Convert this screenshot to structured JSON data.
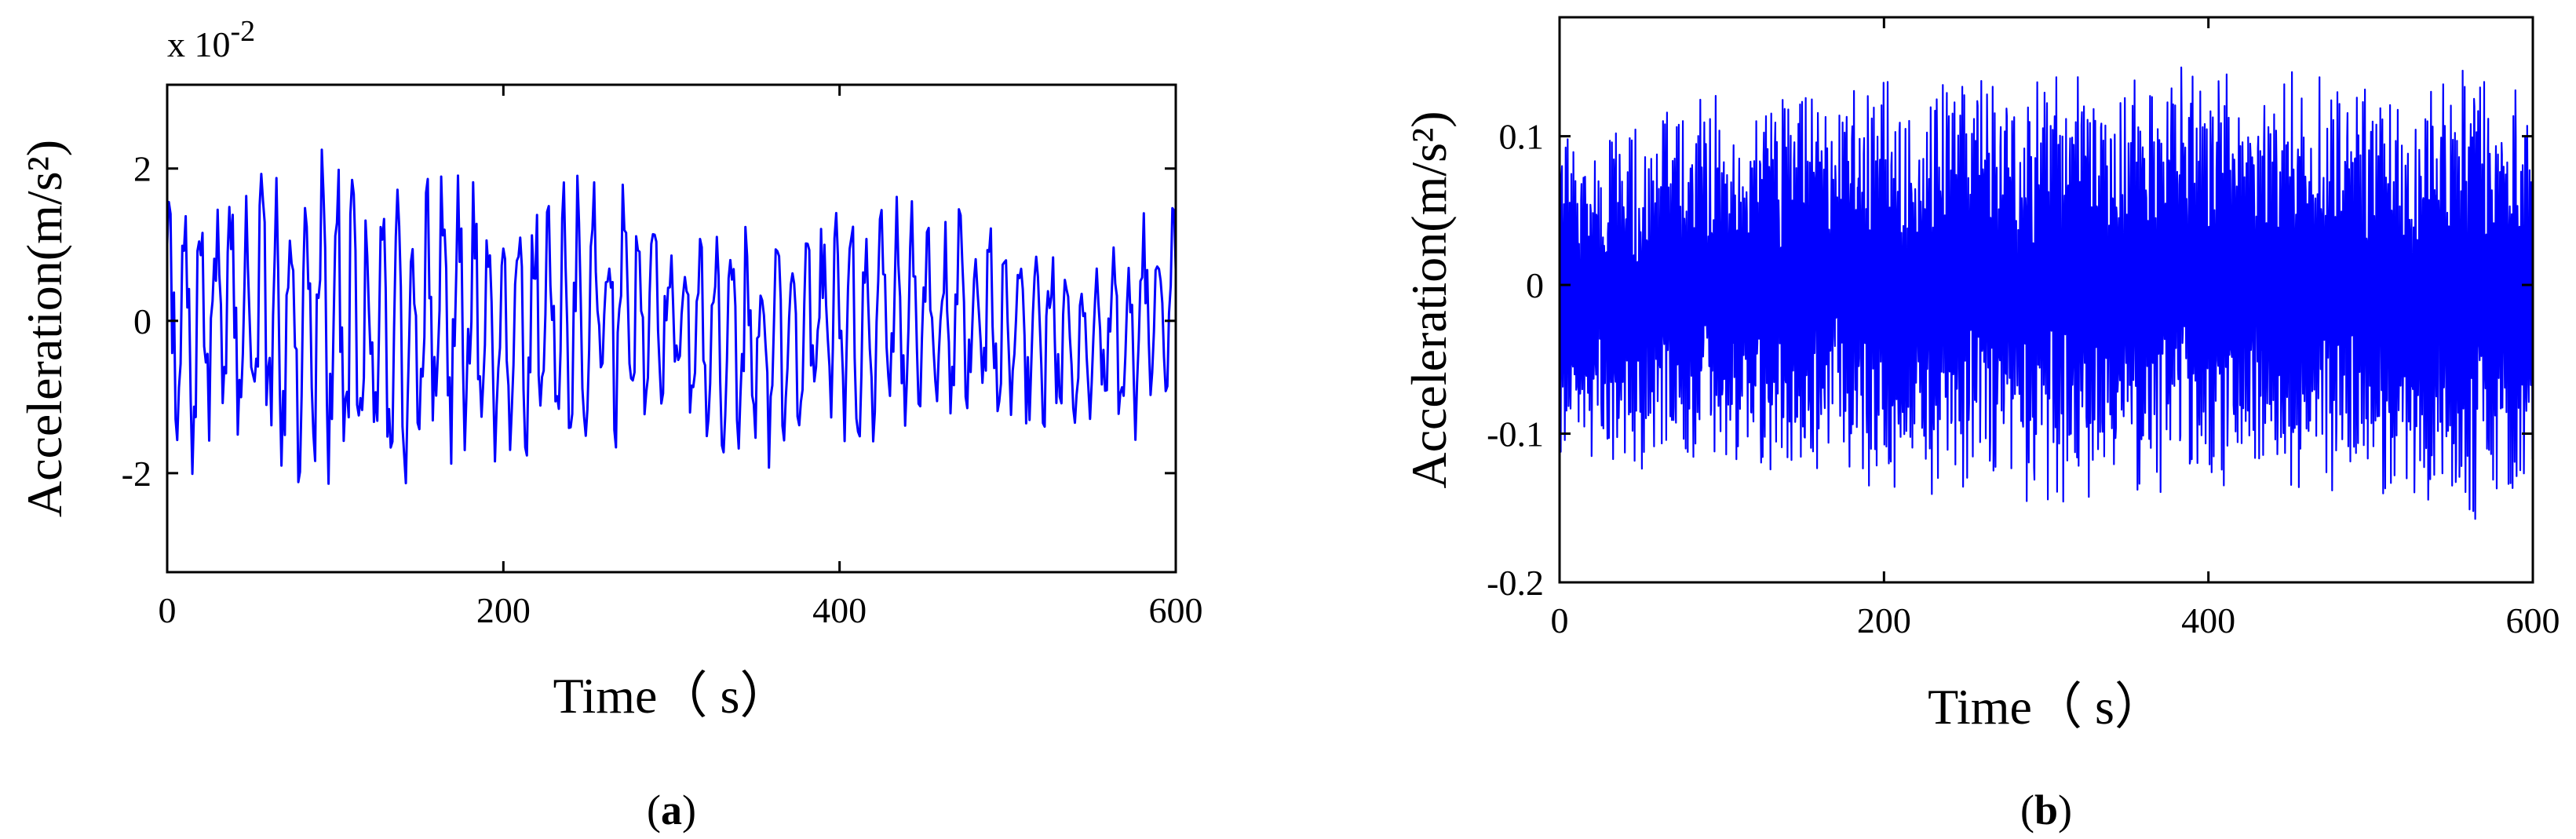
{
  "chart_data": [
    {
      "id": "a",
      "type": "line",
      "caption": "(a)",
      "caption_letter": "a",
      "xlabel": "Time（ s）",
      "ylabel": "Acceleration(m/s²)",
      "y_scale_label": "x 10",
      "y_scale_exponent": "-2",
      "xlim": [
        0,
        600
      ],
      "ylim": [
        -3.3,
        3.1
      ],
      "xticks": [
        0,
        200,
        400,
        600
      ],
      "yticks": [
        -2,
        0,
        2
      ],
      "ytick_labels": [
        "-2",
        "0",
        "2"
      ],
      "line_color": "#0000ff",
      "envelope": {
        "t": [
          0,
          30,
          60,
          80,
          100,
          140,
          160,
          200,
          250,
          280,
          300,
          340,
          400,
          450,
          500,
          550,
          600
        ],
        "ymax": [
          1.7,
          2.0,
          2.2,
          2.6,
          2.4,
          2.0,
          2.35,
          1.8,
          1.95,
          2.1,
          1.3,
          1.5,
          1.5,
          1.7,
          1.3,
          1.2,
          1.7
        ],
        "ymin": [
          -2.6,
          -1.8,
          -2.2,
          -2.4,
          -2.7,
          -2.5,
          -2.0,
          -2.0,
          -1.8,
          -1.7,
          -1.2,
          -2.1,
          -1.7,
          -1.5,
          -1.5,
          -1.7,
          -1.5
        ]
      },
      "dominant_period_s": 9,
      "sample_step_s": 1
    },
    {
      "id": "b",
      "type": "line",
      "caption": "(b)",
      "caption_letter": "b",
      "xlabel": "Time（ s）",
      "ylabel": "Acceleration(m/s²)",
      "xlim": [
        0,
        600
      ],
      "ylim": [
        -0.2,
        0.18
      ],
      "xticks": [
        0,
        200,
        400,
        600
      ],
      "yticks": [
        -0.2,
        -0.1,
        0,
        0.1
      ],
      "ytick_labels": [
        "-0.2",
        "-0.1",
        "0",
        "0.1"
      ],
      "line_color": "#0000ff",
      "envelope": {
        "t": [
          0,
          100,
          200,
          300,
          400,
          500,
          550,
          600
        ],
        "ymax": [
          0.1,
          0.13,
          0.14,
          0.15,
          0.15,
          0.14,
          0.15,
          0.14
        ],
        "ymin": [
          -0.12,
          -0.13,
          -0.14,
          -0.15,
          -0.14,
          -0.15,
          -0.17,
          -0.13
        ]
      },
      "dominant_period_s": 1.2,
      "sample_step_s": 0.25
    }
  ]
}
